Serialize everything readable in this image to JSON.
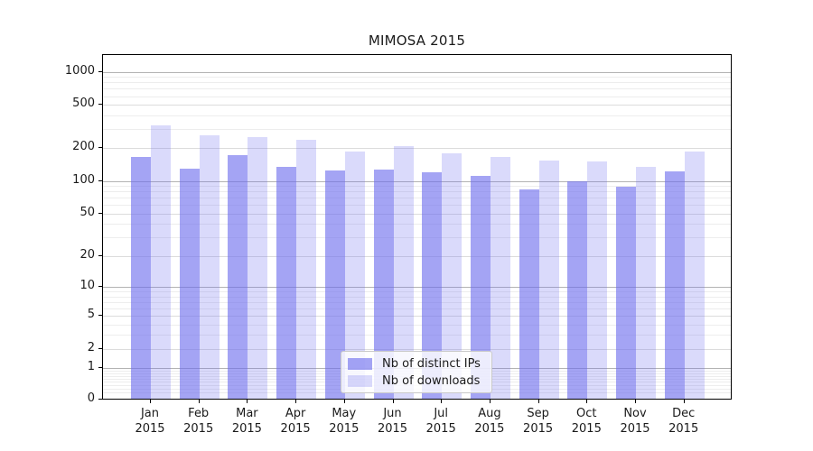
{
  "title": "MIMOSA 2015",
  "chart_data": {
    "type": "bar",
    "title": "MIMOSA 2015",
    "xlabel": "",
    "ylabel": "",
    "year_line": "2015",
    "categories": [
      "Jan",
      "Feb",
      "Mar",
      "Apr",
      "May",
      "Jun",
      "Jul",
      "Aug",
      "Sep",
      "Oct",
      "Nov",
      "Dec"
    ],
    "series": [
      {
        "name": "Nb of distinct IPs",
        "color": "rgba(108,108,238,0.62)",
        "values": [
          157,
          124,
          165,
          128,
          120,
          122,
          114,
          107,
          79,
          94,
          84,
          116
        ]
      },
      {
        "name": "Nb of downloads",
        "color": "rgba(108,108,238,0.25)",
        "values": [
          310,
          252,
          240,
          226,
          178,
          200,
          170,
          157,
          148,
          143,
          128,
          178
        ]
      }
    ],
    "y_scale": "log10(value+1)",
    "y_ticks": [
      1000,
      500,
      200,
      100,
      50,
      20,
      10,
      5,
      2,
      1,
      0
    ],
    "y_major_gridlines": [
      1000,
      100,
      10,
      1
    ],
    "y_mid_gridlines": [
      500,
      200,
      50,
      20,
      5,
      2
    ],
    "y_minor_gridlines": [
      0.2,
      0.3,
      0.4,
      0.5,
      0.6,
      0.7,
      0.8,
      0.9,
      3,
      4,
      6,
      7,
      8,
      9,
      30,
      40,
      60,
      70,
      80,
      90,
      300,
      400,
      600,
      700,
      800,
      900
    ],
    "ylim": [
      0,
      1200
    ],
    "grid": true,
    "legend_position": "lower center"
  },
  "legend": {
    "items": [
      {
        "label": "Nb of distinct IPs"
      },
      {
        "label": "Nb of downloads"
      }
    ]
  },
  "colors": {
    "bar_distinct_ips": "rgba(108,108,238,0.62)",
    "bar_downloads": "rgba(108,108,238,0.25)",
    "grid_major": "#b3b3b3",
    "grid_mid": "#dcdcdc",
    "grid_minor": "#ededed",
    "spine": "#000000",
    "text": "#1a1a1a",
    "legend_border": "#c9c9c9",
    "legend_bg": "rgba(255,255,255,0.8)"
  }
}
